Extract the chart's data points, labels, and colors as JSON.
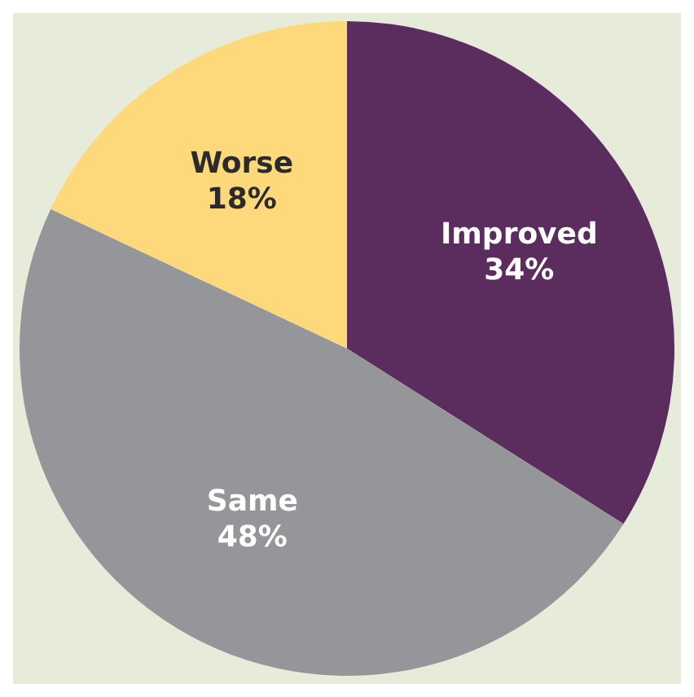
{
  "chart_data": {
    "type": "pie",
    "categories": [
      "Improved",
      "Same",
      "Worse"
    ],
    "values": [
      34,
      48,
      18
    ],
    "colors": [
      "#5b2c5e",
      "#95969a",
      "#fdd97c"
    ],
    "value_labels": [
      "34%",
      "48%",
      "18%"
    ]
  }
}
